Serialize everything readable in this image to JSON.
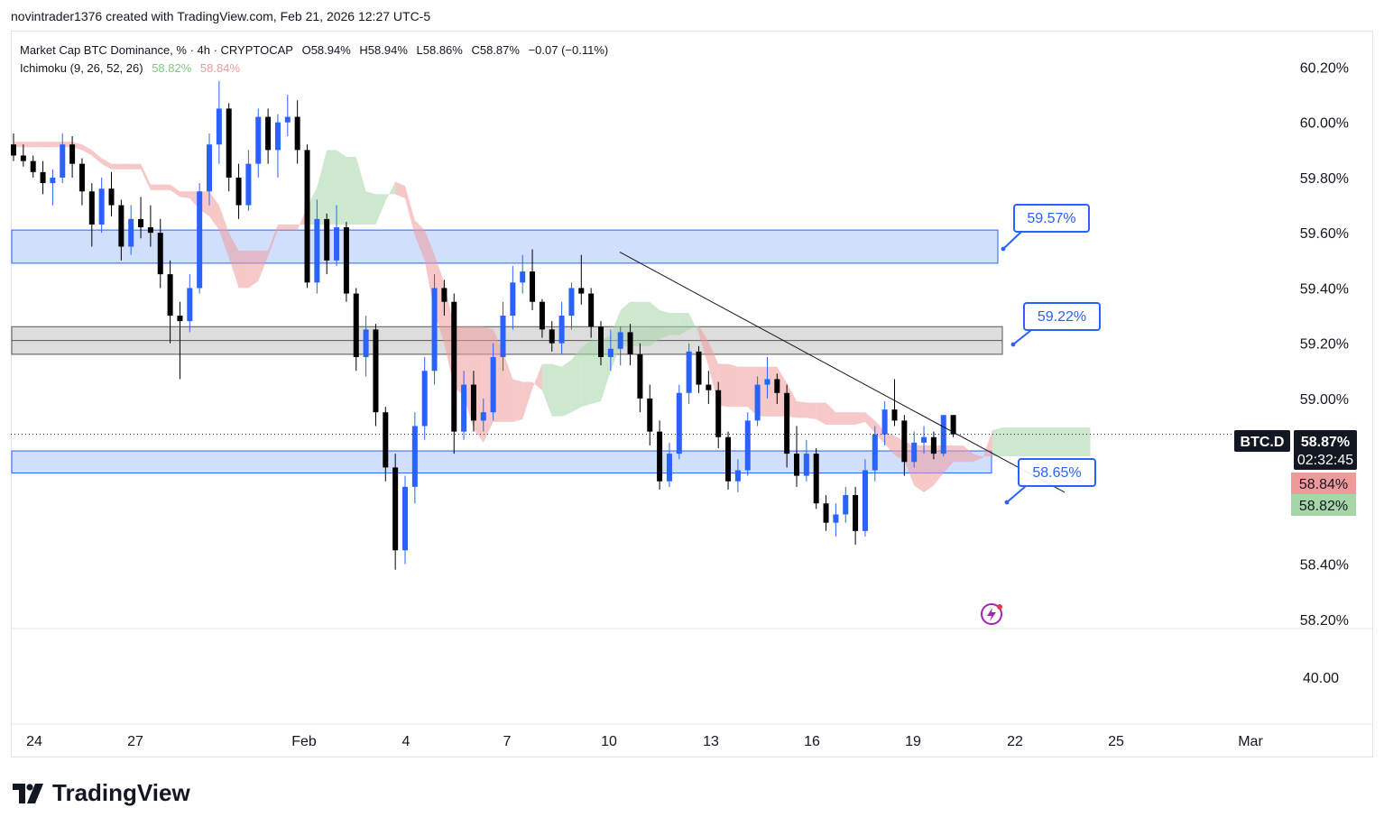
{
  "attribution": "novintrader1376 created with TradingView.com, Feb 21, 2026 12:27 UTC-5",
  "legend": {
    "title": "Market Cap BTC Dominance, % · 4h · CRYPTOCAP",
    "open": "O58.94%",
    "high": "H58.94%",
    "low": "L58.86%",
    "close": "C58.87%",
    "change": "−0.07 (−0.11%)",
    "indicator": "Ichimoku (9, 26, 52, 26)",
    "ind_val1": "58.82%",
    "ind_val2": "58.84%"
  },
  "price_axis": {
    "ticks": [
      "60.20%",
      "60.00%",
      "59.80%",
      "59.60%",
      "59.40%",
      "59.20%",
      "59.00%",
      "58.80%",
      "58.60%",
      "58.40%",
      "58.20%"
    ],
    "lower_tick": "40.00"
  },
  "time_axis": [
    "24",
    "27",
    "Feb",
    "4",
    "7",
    "10",
    "13",
    "16",
    "19",
    "22",
    "25",
    "Mar"
  ],
  "symbol_tag": "BTC.D",
  "price_tag": "58.87%",
  "countdown": "02:32:45",
  "tag_red": "58.84%",
  "tag_green": "58.82%",
  "callouts": [
    "59.57%",
    "59.22%",
    "58.65%"
  ],
  "logo_text": "TradingView",
  "colors": {
    "up": "#2962ff",
    "down": "#000000",
    "cloud_green": "#a5d6a7",
    "cloud_red": "#ef9a9a",
    "zone_blue": "#c9d8fb",
    "zone_gray": "#d9d9d9",
    "callout": "#2962ff"
  },
  "chart_data": {
    "type": "candlestick",
    "title": "Market Cap BTC Dominance, % · 4h · CRYPTOCAP",
    "ylim": [
      58.17,
      60.28
    ],
    "x_labels": [
      "24",
      "27",
      "Feb",
      "4",
      "7",
      "10",
      "13",
      "16",
      "19",
      "22",
      "25",
      "Mar"
    ],
    "candles": [
      [
        59.92,
        59.96,
        59.86,
        59.88
      ],
      [
        59.88,
        59.92,
        59.84,
        59.86
      ],
      [
        59.86,
        59.88,
        59.8,
        59.82
      ],
      [
        59.82,
        59.86,
        59.74,
        59.78
      ],
      [
        59.78,
        59.83,
        59.7,
        59.8
      ],
      [
        59.8,
        59.96,
        59.78,
        59.92
      ],
      [
        59.92,
        59.95,
        59.8,
        59.85
      ],
      [
        59.85,
        59.87,
        59.7,
        59.75
      ],
      [
        59.75,
        59.78,
        59.55,
        59.63
      ],
      [
        59.63,
        59.8,
        59.6,
        59.76
      ],
      [
        59.76,
        59.82,
        59.66,
        59.7
      ],
      [
        59.7,
        59.72,
        59.5,
        59.55
      ],
      [
        59.55,
        59.7,
        59.52,
        59.65
      ],
      [
        59.65,
        59.73,
        59.58,
        59.62
      ],
      [
        59.62,
        59.7,
        59.55,
        59.6
      ],
      [
        59.6,
        59.65,
        59.4,
        59.45
      ],
      [
        59.45,
        59.5,
        59.2,
        59.3
      ],
      [
        59.3,
        59.35,
        59.07,
        59.28
      ],
      [
        59.28,
        59.45,
        59.24,
        59.4
      ],
      [
        59.4,
        59.78,
        59.38,
        59.75
      ],
      [
        59.75,
        59.96,
        59.7,
        59.92
      ],
      [
        59.92,
        60.15,
        59.85,
        60.05
      ],
      [
        60.05,
        60.07,
        59.75,
        59.8
      ],
      [
        59.8,
        59.85,
        59.65,
        59.7
      ],
      [
        59.7,
        59.9,
        59.68,
        59.85
      ],
      [
        59.85,
        60.05,
        59.8,
        60.02
      ],
      [
        60.02,
        60.05,
        59.85,
        59.9
      ],
      [
        59.9,
        60.03,
        59.8,
        60.0
      ],
      [
        60.0,
        60.1,
        59.95,
        60.02
      ],
      [
        60.02,
        60.08,
        59.85,
        59.9
      ],
      [
        59.9,
        59.92,
        59.4,
        59.42
      ],
      [
        59.42,
        59.72,
        59.38,
        59.65
      ],
      [
        59.65,
        59.67,
        59.45,
        59.5
      ],
      [
        59.5,
        59.7,
        59.48,
        59.62
      ],
      [
        59.62,
        59.64,
        59.35,
        59.38
      ],
      [
        59.38,
        59.4,
        59.1,
        59.15
      ],
      [
        59.15,
        59.3,
        59.08,
        59.25
      ],
      [
        59.25,
        59.27,
        58.9,
        58.95
      ],
      [
        58.95,
        58.97,
        58.7,
        58.75
      ],
      [
        58.75,
        58.8,
        58.38,
        58.45
      ],
      [
        58.45,
        58.72,
        58.4,
        58.68
      ],
      [
        58.68,
        58.95,
        58.62,
        58.9
      ],
      [
        58.9,
        59.15,
        58.85,
        59.1
      ],
      [
        59.1,
        59.45,
        59.05,
        59.4
      ],
      [
        59.4,
        59.43,
        59.3,
        59.35
      ],
      [
        59.35,
        59.38,
        58.8,
        58.88
      ],
      [
        58.88,
        59.1,
        58.85,
        59.05
      ],
      [
        59.05,
        59.1,
        58.88,
        58.92
      ],
      [
        58.92,
        59.0,
        58.88,
        58.95
      ],
      [
        58.95,
        59.2,
        58.92,
        59.15
      ],
      [
        59.15,
        59.35,
        59.1,
        59.3
      ],
      [
        59.3,
        59.48,
        59.25,
        59.42
      ],
      [
        59.42,
        59.52,
        59.38,
        59.46
      ],
      [
        59.46,
        59.54,
        59.32,
        59.35
      ],
      [
        59.35,
        59.36,
        59.22,
        59.25
      ],
      [
        59.25,
        59.28,
        59.17,
        59.2
      ],
      [
        59.2,
        59.35,
        59.16,
        59.3
      ],
      [
        59.3,
        59.42,
        59.25,
        59.4
      ],
      [
        59.4,
        59.52,
        59.34,
        59.38
      ],
      [
        59.38,
        59.4,
        59.22,
        59.26
      ],
      [
        59.26,
        59.28,
        59.12,
        59.15
      ],
      [
        59.15,
        59.25,
        59.1,
        59.18
      ],
      [
        59.18,
        59.26,
        59.12,
        59.24
      ],
      [
        59.24,
        59.27,
        59.12,
        59.16
      ],
      [
        59.16,
        59.2,
        58.95,
        59.0
      ],
      [
        59.0,
        59.05,
        58.83,
        58.88
      ],
      [
        58.88,
        58.92,
        58.67,
        58.7
      ],
      [
        58.7,
        58.84,
        58.68,
        58.8
      ],
      [
        58.8,
        59.05,
        58.78,
        59.02
      ],
      [
        59.02,
        59.2,
        58.98,
        59.17
      ],
      [
        59.17,
        59.19,
        59.02,
        59.05
      ],
      [
        59.05,
        59.1,
        58.98,
        59.03
      ],
      [
        59.03,
        59.06,
        58.82,
        58.86
      ],
      [
        58.86,
        58.88,
        58.67,
        58.7
      ],
      [
        58.7,
        58.78,
        58.66,
        58.74
      ],
      [
        58.74,
        58.95,
        58.72,
        58.92
      ],
      [
        58.92,
        59.08,
        58.9,
        59.05
      ],
      [
        59.05,
        59.15,
        59.0,
        59.07
      ],
      [
        59.07,
        59.09,
        58.98,
        59.02
      ],
      [
        59.02,
        59.05,
        58.75,
        58.8
      ],
      [
        58.8,
        58.9,
        58.68,
        58.72
      ],
      [
        58.72,
        58.85,
        58.7,
        58.8
      ],
      [
        58.8,
        58.82,
        58.6,
        58.62
      ],
      [
        58.62,
        58.65,
        58.52,
        58.55
      ],
      [
        58.55,
        58.62,
        58.5,
        58.58
      ],
      [
        58.58,
        58.68,
        58.55,
        58.65
      ],
      [
        58.65,
        58.68,
        58.47,
        58.52
      ],
      [
        58.52,
        58.78,
        58.5,
        58.74
      ],
      [
        58.74,
        58.9,
        58.7,
        58.87
      ],
      [
        58.87,
        58.99,
        58.83,
        58.96
      ],
      [
        58.96,
        59.07,
        58.9,
        58.92
      ],
      [
        58.92,
        58.94,
        58.72,
        58.77
      ],
      [
        58.77,
        58.88,
        58.75,
        58.84
      ],
      [
        58.84,
        58.9,
        58.8,
        58.86
      ],
      [
        58.86,
        58.88,
        58.78,
        58.8
      ],
      [
        58.8,
        58.94,
        58.79,
        58.94
      ],
      [
        58.94,
        58.94,
        58.86,
        58.87
      ]
    ],
    "zones": [
      {
        "from": 59.49,
        "to": 59.61,
        "color": "blue",
        "callout": "59.57%"
      },
      {
        "from": 59.16,
        "to": 59.26,
        "color": "gray",
        "callout": "59.22%"
      },
      {
        "from": 58.73,
        "to": 58.81,
        "color": "blue",
        "callout": "58.65%"
      }
    ],
    "trendline": {
      "start_price": 59.53,
      "end_price": 58.66
    }
  }
}
